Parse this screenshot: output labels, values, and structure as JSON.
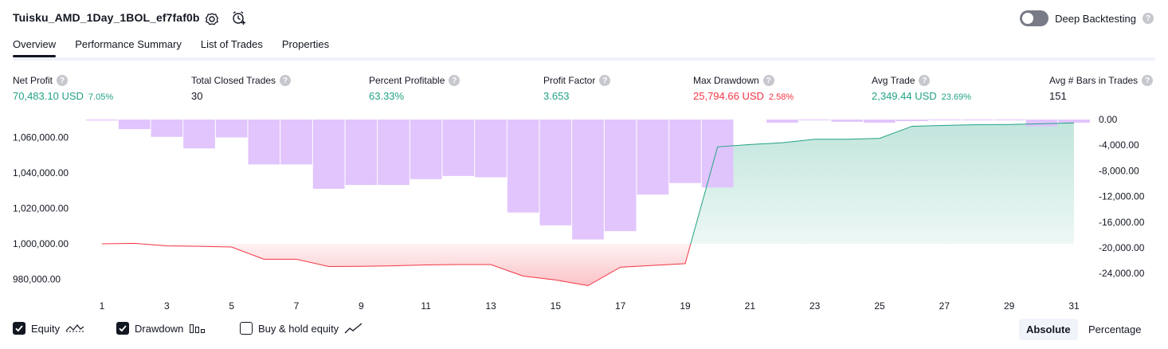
{
  "header": {
    "title": "Tuisku_AMD_1Day_1BOL_ef7faf0b",
    "deep_backtesting_label": "Deep Backtesting",
    "help_glyph": "?"
  },
  "tabs": [
    {
      "label": "Overview",
      "active": true
    },
    {
      "label": "Performance Summary",
      "active": false
    },
    {
      "label": "List of Trades",
      "active": false
    },
    {
      "label": "Properties",
      "active": false
    }
  ],
  "stats": {
    "net_profit": {
      "label": "Net Profit",
      "value": "70,483.10 USD",
      "pct": "7.05%"
    },
    "total_closed_trades": {
      "label": "Total Closed Trades",
      "value": "30"
    },
    "percent_profitable": {
      "label": "Percent Profitable",
      "value": "63.33%"
    },
    "profit_factor": {
      "label": "Profit Factor",
      "value": "3.653"
    },
    "max_drawdown": {
      "label": "Max Drawdown",
      "value": "25,794.66 USD",
      "pct": "2.58%"
    },
    "avg_trade": {
      "label": "Avg Trade",
      "value": "2,349.44 USD",
      "pct": "23.69%"
    },
    "avg_bars": {
      "label": "Avg # Bars in Trades",
      "value": "151"
    }
  },
  "colors": {
    "positive": "#22a283",
    "negative": "#f23645",
    "drawdown_bar": "#dfc2fc",
    "equity_line_up": "#22a283",
    "equity_line_down": "#f23645"
  },
  "chart_data": {
    "type": "line+bar",
    "x_tick_labels": [
      "1",
      "3",
      "5",
      "7",
      "9",
      "11",
      "13",
      "15",
      "17",
      "19",
      "21",
      "23",
      "25",
      "27",
      "29",
      "31"
    ],
    "left_axis_tick_labels": [
      "1,060,000.00",
      "1,040,000.00",
      "1,020,000.00",
      "1,000,000.00",
      "980,000.00"
    ],
    "left_axis_ticks": [
      1060000,
      1040000,
      1020000,
      1000000,
      980000
    ],
    "right_axis_tick_labels": [
      "0.00",
      "-4,000.00",
      "-8,000.00",
      "-12,000.00",
      "-16,000.00",
      "-20,000.00",
      "-24,000.00"
    ],
    "right_axis_ticks": [
      0,
      -4000,
      -8000,
      -12000,
      -16000,
      -20000,
      -24000
    ],
    "baseline_equity": 1000000,
    "equity": {
      "x": [
        1,
        2,
        3,
        4,
        5,
        6,
        7,
        8,
        9,
        10,
        11,
        12,
        13,
        14,
        15,
        16,
        17,
        18,
        19,
        20,
        21,
        22,
        23,
        24,
        25,
        26,
        27,
        28,
        29,
        30,
        31
      ],
      "y": [
        1000000,
        1000300,
        998800,
        998600,
        998200,
        991300,
        991300,
        987200,
        987300,
        987600,
        988100,
        988300,
        988300,
        981800,
        979600,
        976400,
        986800,
        987800,
        988800,
        1054700,
        1056000,
        1057000,
        1059000,
        1059000,
        1059500,
        1066300,
        1066800,
        1067200,
        1067300,
        1067700,
        1068200
      ]
    },
    "drawdown": {
      "x": [
        1,
        2,
        3,
        4,
        5,
        6,
        7,
        8,
        9,
        10,
        11,
        12,
        13,
        14,
        15,
        16,
        17,
        18,
        19,
        20,
        21,
        22,
        23,
        24,
        25,
        26,
        27,
        28,
        29,
        30,
        31
      ],
      "y": [
        -150,
        -1500,
        -2700,
        -4500,
        -2800,
        -7000,
        -7000,
        -10800,
        -10200,
        -10200,
        -9300,
        -8800,
        -9000,
        -14500,
        -16500,
        -18700,
        -17400,
        -11700,
        -9900,
        -10600,
        0,
        -500,
        -100,
        -350,
        -500,
        -250,
        -100,
        -100,
        -100,
        -1100,
        -500
      ]
    },
    "options": [
      {
        "label": "Equity",
        "checked": true
      },
      {
        "label": "Drawdown",
        "checked": true
      },
      {
        "label": "Buy & hold equity",
        "checked": false
      }
    ],
    "scale_modes": [
      "Absolute",
      "Percentage"
    ],
    "active_scale_mode": "Absolute"
  }
}
